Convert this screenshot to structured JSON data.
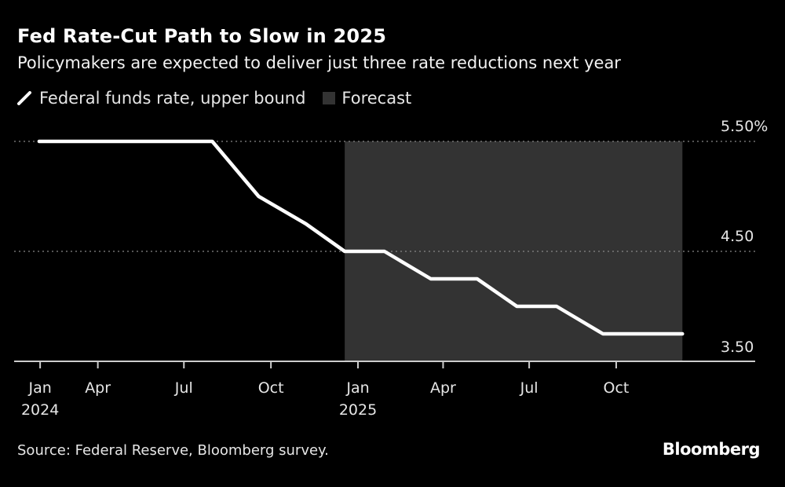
{
  "title": "Fed Rate-Cut Path to Slow in 2025",
  "subtitle": "Policymakers are expected to deliver just three rate reductions next year",
  "legend": {
    "line_label": "Federal funds rate, upper bound",
    "forecast_label": "Forecast"
  },
  "source": "Source: Federal Reserve, Bloomberg survey.",
  "logo": "Bloomberg",
  "colors": {
    "background": "#000000",
    "line": "#ffffff",
    "forecast": "#333333",
    "grid": "#888888"
  },
  "chart_data": {
    "type": "line",
    "title": "Fed Rate-Cut Path to Slow in 2025",
    "subtitle": "Policymakers are expected to deliver just three rate reductions next year",
    "xlabel": "",
    "ylabel": "",
    "ylim": [
      3.5,
      5.5
    ],
    "xlim": [
      "2024-01-30",
      "2025-12-10"
    ],
    "grid": {
      "y": true,
      "style": "dotted"
    },
    "legend_position": "top-left",
    "y_ticks": [
      {
        "value": 5.5,
        "label": "5.50%"
      },
      {
        "value": 4.5,
        "label": "4.50"
      },
      {
        "value": 3.5,
        "label": "3.50"
      }
    ],
    "x_ticks": [
      {
        "date": "2024-01-31",
        "label": "Jan",
        "sublabel": "2024"
      },
      {
        "date": "2024-04-01",
        "label": "Apr",
        "sublabel": ""
      },
      {
        "date": "2024-07-01",
        "label": "Jul",
        "sublabel": ""
      },
      {
        "date": "2024-10-01",
        "label": "Oct",
        "sublabel": ""
      },
      {
        "date": "2025-01-01",
        "label": "Jan",
        "sublabel": "2025"
      },
      {
        "date": "2025-04-01",
        "label": "Apr",
        "sublabel": ""
      },
      {
        "date": "2025-07-01",
        "label": "Jul",
        "sublabel": ""
      },
      {
        "date": "2025-10-01",
        "label": "Oct",
        "sublabel": ""
      }
    ],
    "forecast_range": [
      "2024-12-18",
      "2025-12-10"
    ],
    "series": [
      {
        "name": "Federal funds rate, upper bound",
        "points": [
          [
            "2024-01-30",
            5.5
          ],
          [
            "2024-07-31",
            5.5
          ],
          [
            "2024-09-18",
            5.0
          ],
          [
            "2024-11-07",
            4.75
          ],
          [
            "2024-12-18",
            4.5
          ],
          [
            "2025-01-29",
            4.5
          ],
          [
            "2025-03-19",
            4.25
          ],
          [
            "2025-05-07",
            4.25
          ],
          [
            "2025-06-18",
            4.0
          ],
          [
            "2025-07-30",
            4.0
          ],
          [
            "2025-09-17",
            3.75
          ],
          [
            "2025-12-10",
            3.75
          ]
        ]
      }
    ]
  }
}
